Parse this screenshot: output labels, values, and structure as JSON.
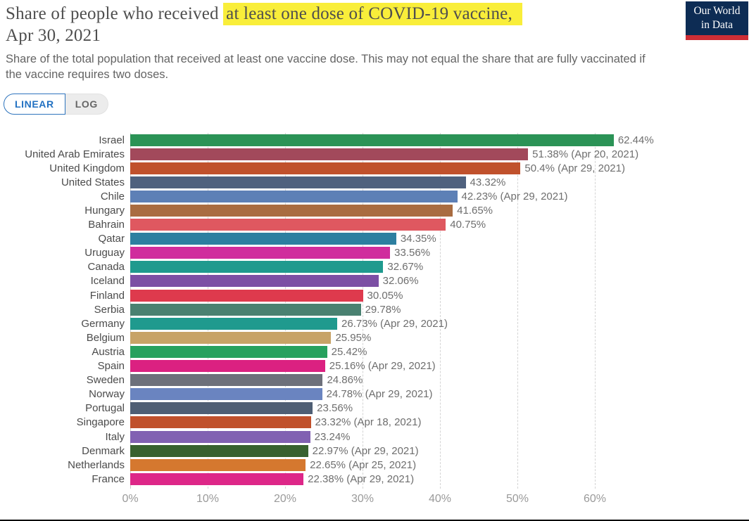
{
  "header": {
    "title_prefix": "Share of people who received",
    "title_highlight": "at least one dose of COVID-19 vaccine,",
    "title_suffix": "Apr 30, 2021",
    "subtitle": "Share of the total population that received at least one vaccine dose. This may not equal the share that are fully vaccinated if the vaccine requires two doses.",
    "highlight_color": "#F9EE3A",
    "logo": {
      "line1": "Our World",
      "line2": "in Data",
      "bg_color": "#0D2C54",
      "bar_color": "#CE2E36"
    }
  },
  "controls": {
    "linear_label": "LINEAR",
    "log_label": "LOG",
    "active": "LINEAR",
    "accent_color": "#2271C2"
  },
  "chart_data": {
    "type": "bar",
    "orientation": "horizontal",
    "title": "Share of people who received at least one dose of COVID-19 vaccine, Apr 30, 2021",
    "subtitle": "Share of the total population that received at least one vaccine dose. This may not equal the share that are fully vaccinated if the vaccine requires two doses.",
    "xlabel": "",
    "ylabel": "",
    "xlim": [
      0,
      64
    ],
    "grid": true,
    "x_ticks": [
      {
        "value": 0,
        "label": "0%"
      },
      {
        "value": 10,
        "label": "10%"
      },
      {
        "value": 20,
        "label": "20%"
      },
      {
        "value": 30,
        "label": "30%"
      },
      {
        "value": 40,
        "label": "40%"
      },
      {
        "value": 50,
        "label": "50%"
      },
      {
        "value": 60,
        "label": "60%"
      }
    ],
    "series": [
      {
        "entity": "Israel",
        "value": 62.44,
        "label": "62.44%",
        "color": "#2B9356"
      },
      {
        "entity": "United Arab Emirates",
        "value": 51.38,
        "label": "51.38% (Apr 20, 2021)",
        "color": "#A2495B"
      },
      {
        "entity": "United Kingdom",
        "value": 50.4,
        "label": "50.4% (Apr 29, 2021)",
        "color": "#C0512C"
      },
      {
        "entity": "United States",
        "value": 43.32,
        "label": "43.32%",
        "color": "#4F617E"
      },
      {
        "entity": "Chile",
        "value": 42.23,
        "label": "42.23% (Apr 29, 2021)",
        "color": "#5D80B6"
      },
      {
        "entity": "Hungary",
        "value": 41.65,
        "label": "41.65%",
        "color": "#A96C41"
      },
      {
        "entity": "Bahrain",
        "value": 40.75,
        "label": "40.75%",
        "color": "#DF5860"
      },
      {
        "entity": "Qatar",
        "value": 34.35,
        "label": "34.35%",
        "color": "#2D7FA0"
      },
      {
        "entity": "Uruguay",
        "value": 33.56,
        "label": "33.56%",
        "color": "#D02D9D"
      },
      {
        "entity": "Canada",
        "value": 32.67,
        "label": "32.67%",
        "color": "#1F9A8E"
      },
      {
        "entity": "Iceland",
        "value": 32.06,
        "label": "32.06%",
        "color": "#7C4FA4"
      },
      {
        "entity": "Finland",
        "value": 30.05,
        "label": "30.05%",
        "color": "#DE3A4D"
      },
      {
        "entity": "Serbia",
        "value": 29.78,
        "label": "29.78%",
        "color": "#4A8171"
      },
      {
        "entity": "Germany",
        "value": 26.73,
        "label": "26.73% (Apr 29, 2021)",
        "color": "#1F9A8E"
      },
      {
        "entity": "Belgium",
        "value": 25.95,
        "label": "25.95%",
        "color": "#C7A367"
      },
      {
        "entity": "Austria",
        "value": 25.42,
        "label": "25.42%",
        "color": "#27A15E"
      },
      {
        "entity": "Spain",
        "value": 25.16,
        "label": "25.16% (Apr 29, 2021)",
        "color": "#DB2181"
      },
      {
        "entity": "Sweden",
        "value": 24.86,
        "label": "24.86%",
        "color": "#6D707B"
      },
      {
        "entity": "Norway",
        "value": 24.78,
        "label": "24.78% (Apr 29, 2021)",
        "color": "#6A84C0"
      },
      {
        "entity": "Portugal",
        "value": 23.56,
        "label": "23.56%",
        "color": "#4E5E74"
      },
      {
        "entity": "Singapore",
        "value": 23.32,
        "label": "23.32% (Apr 18, 2021)",
        "color": "#C0512C"
      },
      {
        "entity": "Italy",
        "value": 23.24,
        "label": "23.24%",
        "color": "#8161B2"
      },
      {
        "entity": "Denmark",
        "value": 22.97,
        "label": "22.97% (Apr 29, 2021)",
        "color": "#38612F"
      },
      {
        "entity": "Netherlands",
        "value": 22.65,
        "label": "22.65% (Apr 25, 2021)",
        "color": "#D5782F"
      },
      {
        "entity": "France",
        "value": 22.38,
        "label": "22.38% (Apr 29, 2021)",
        "color": "#DD2788"
      }
    ]
  }
}
